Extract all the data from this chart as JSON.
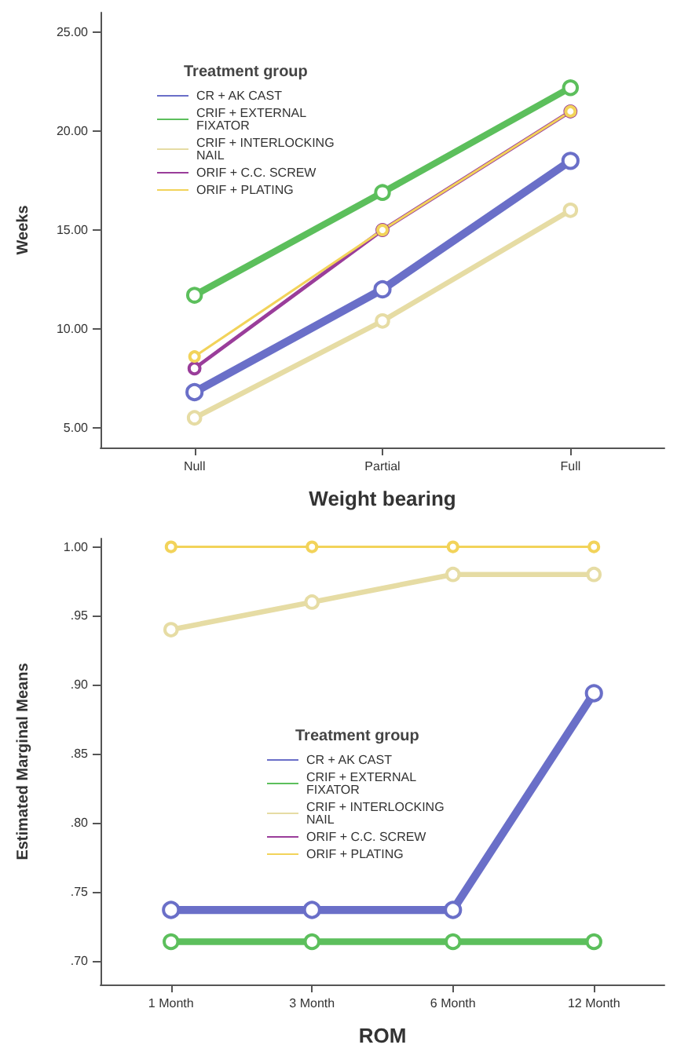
{
  "chart_data": [
    {
      "type": "line",
      "xlabel": "Weight bearing",
      "ylabel": "Weeks",
      "legend_title": "Treatment group",
      "categories": [
        "Null",
        "Partial",
        "Full"
      ],
      "series": [
        {
          "name": "CR + AK CAST",
          "color": "#6a6fc8",
          "values": [
            6.8,
            12.0,
            18.5
          ]
        },
        {
          "name": "CRIF + EXTERNAL FIXATOR",
          "color": "#5cbf5c",
          "values": [
            11.7,
            16.9,
            22.2
          ]
        },
        {
          "name": "CRIF + INTERLOCKING NAIL",
          "color": "#e6dca4",
          "values": [
            5.5,
            10.4,
            16.0
          ]
        },
        {
          "name": "ORIF + C.C. SCREW",
          "color": "#9a3d9a",
          "values": [
            8.0,
            15.0,
            21.0
          ]
        },
        {
          "name": "ORIF + PLATING",
          "color": "#f2d35a",
          "values": [
            8.6,
            15.0,
            21.0
          ]
        }
      ],
      "ylim": [
        4,
        26
      ],
      "yticks": [
        {
          "value": 5,
          "label": "5.00"
        },
        {
          "value": 10,
          "label": "10.00"
        },
        {
          "value": 15,
          "label": "15.00"
        },
        {
          "value": 20,
          "label": "20.00"
        },
        {
          "value": 25,
          "label": "25.00"
        }
      ],
      "grid": false,
      "legend": "top left",
      "marker": "circle",
      "line_style": "solid"
    },
    {
      "type": "line",
      "xlabel": "ROM",
      "ylabel": "Estimated Marginal Means",
      "legend_title": "Treatment group",
      "categories": [
        "1 Month",
        "3 Month",
        "6 Month",
        "12 Month"
      ],
      "series": [
        {
          "name": "CR + AK CAST",
          "color": "#6a6fc8",
          "values": [
            0.737,
            0.737,
            0.737,
            0.894
          ]
        },
        {
          "name": "CRIF + EXTERNAL FIXATOR",
          "color": "#5cbf5c",
          "values": [
            0.714,
            0.714,
            0.714,
            0.714
          ]
        },
        {
          "name": "CRIF + INTERLOCKING NAIL",
          "color": "#e6dca4",
          "values": [
            0.94,
            0.96,
            0.98,
            0.98
          ]
        },
        {
          "name": "ORIF + C.C. SCREW",
          "color": "#9a3d9a",
          "values": [
            null,
            null,
            null,
            null
          ]
        },
        {
          "name": "ORIF + PLATING",
          "color": "#f2d35a",
          "values": [
            1.0,
            1.0,
            1.0,
            1.0
          ]
        }
      ],
      "ylim": [
        0.683,
        1.006
      ],
      "yticks": [
        {
          "value": 0.7,
          "label": ".70"
        },
        {
          "value": 0.75,
          "label": ".75"
        },
        {
          "value": 0.8,
          "label": ".80"
        },
        {
          "value": 0.85,
          "label": ".85"
        },
        {
          "value": 0.9,
          "label": ".90"
        },
        {
          "value": 0.95,
          "label": ".95"
        },
        {
          "value": 1.0,
          "label": "1.00"
        }
      ],
      "grid": false,
      "legend": "center",
      "marker": "circle",
      "line_style": "solid"
    }
  ]
}
